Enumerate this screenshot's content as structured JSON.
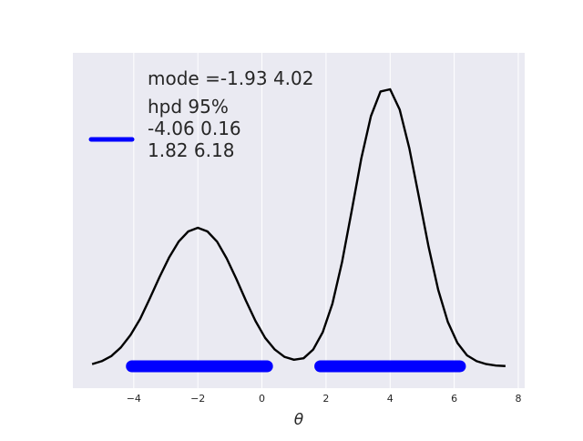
{
  "chart_data": {
    "type": "line",
    "title": "",
    "xlabel": "θ",
    "ylabel": "",
    "xlim": [
      -5.9,
      8.2
    ],
    "ylim": [
      -0.03,
      0.43
    ],
    "xticks": [
      -4,
      -2,
      0,
      2,
      4,
      6,
      8
    ],
    "xtick_labels": [
      "−4",
      "−2",
      "0",
      "2",
      "4",
      "6",
      "8"
    ],
    "yticks_visible": false,
    "grid": "vertical",
    "background": "#EAEAF2",
    "series": [
      {
        "kind": "density",
        "color": "#000000",
        "x": [
          -5.3,
          -5.0,
          -4.7,
          -4.4,
          -4.1,
          -3.8,
          -3.5,
          -3.2,
          -2.9,
          -2.6,
          -2.3,
          -2.0,
          -1.7,
          -1.4,
          -1.1,
          -0.8,
          -0.5,
          -0.2,
          0.1,
          0.4,
          0.7,
          1.0,
          1.3,
          1.6,
          1.9,
          2.2,
          2.5,
          2.8,
          3.1,
          3.4,
          3.7,
          4.0,
          4.3,
          4.6,
          4.9,
          5.2,
          5.5,
          5.8,
          6.1,
          6.4,
          6.7,
          7.0,
          7.3,
          7.6
        ],
        "y": [
          0.003,
          0.007,
          0.014,
          0.026,
          0.043,
          0.065,
          0.093,
          0.122,
          0.149,
          0.171,
          0.185,
          0.19,
          0.185,
          0.171,
          0.148,
          0.12,
          0.09,
          0.062,
          0.039,
          0.023,
          0.013,
          0.009,
          0.011,
          0.023,
          0.047,
          0.086,
          0.143,
          0.213,
          0.285,
          0.343,
          0.377,
          0.38,
          0.352,
          0.299,
          0.232,
          0.164,
          0.105,
          0.061,
          0.032,
          0.015,
          0.007,
          0.003,
          0.001,
          0.0003
        ]
      },
      {
        "kind": "hpd_interval",
        "name": "hpd 95%",
        "color": "#0000FF",
        "intervals": [
          [
            -4.06,
            0.16
          ],
          [
            1.82,
            6.18
          ]
        ],
        "y": 0
      }
    ],
    "legend": {
      "placement": "upper-left",
      "entries": [
        {
          "text": "mode =-1.93 4.02",
          "has_handle": false
        },
        {
          "text": [
            "hpd 95%",
            "-4.06 0.16",
            "1.82 6.18"
          ],
          "has_handle": true,
          "handle_color": "#0000FF"
        }
      ]
    }
  }
}
